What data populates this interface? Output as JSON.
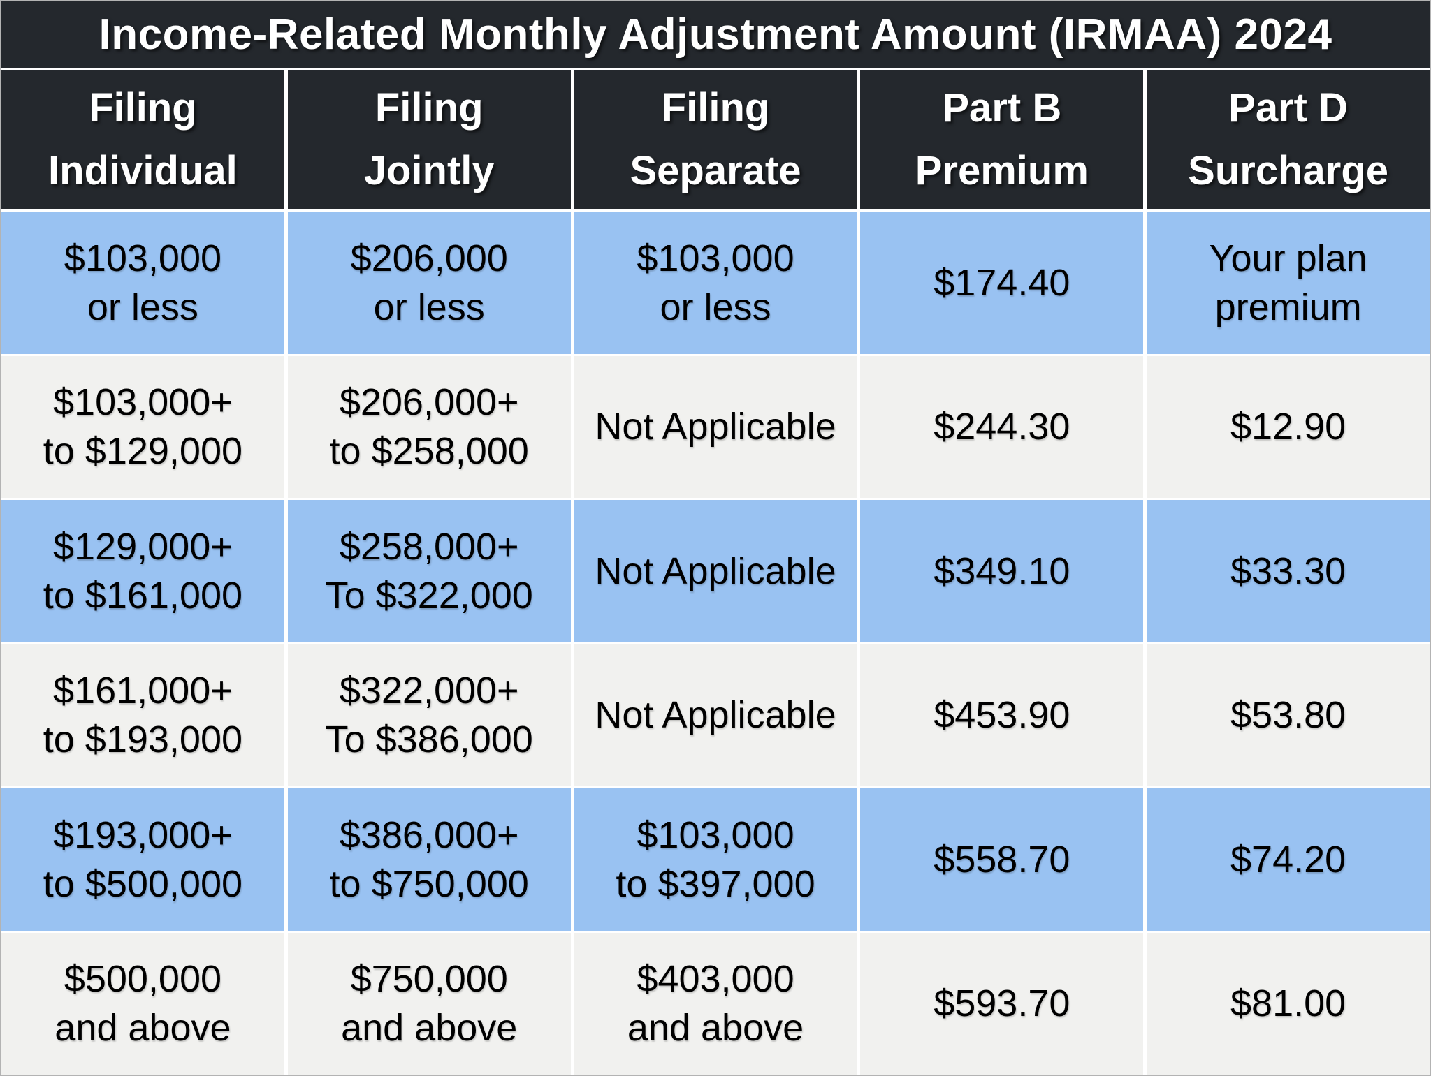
{
  "title": "Income-Related Monthly Adjustment Amount (IRMAA) 2024",
  "colors": {
    "header_bg": "#24282d",
    "header_text": "#ffffff",
    "row_blue": "#99c2f2",
    "row_gray": "#f1f1ef",
    "grid_line": "#ffffff",
    "cell_text": "#000000"
  },
  "table": {
    "header": [
      [
        "Filing",
        "Individual"
      ],
      [
        "Filing",
        "Jointly"
      ],
      [
        "Filing",
        "Separate"
      ],
      [
        "Part B",
        "Premium"
      ],
      [
        "Part D",
        "Surcharge"
      ]
    ],
    "rows": [
      {
        "shade": "blue",
        "cells": [
          [
            "$103,000",
            "or less"
          ],
          [
            "$206,000",
            "or less"
          ],
          [
            "$103,000",
            "or less"
          ],
          [
            "$174.40"
          ],
          [
            "Your plan",
            "premium"
          ]
        ]
      },
      {
        "shade": "gray",
        "cells": [
          [
            "$103,000+",
            "to $129,000"
          ],
          [
            "$206,000+",
            "to $258,000"
          ],
          [
            "Not Applicable"
          ],
          [
            "$244.30"
          ],
          [
            "$12.90"
          ]
        ]
      },
      {
        "shade": "blue",
        "cells": [
          [
            "$129,000+",
            "to $161,000"
          ],
          [
            "$258,000+",
            "To $322,000"
          ],
          [
            "Not Applicable"
          ],
          [
            "$349.10"
          ],
          [
            "$33.30"
          ]
        ]
      },
      {
        "shade": "gray",
        "cells": [
          [
            "$161,000+",
            "to $193,000"
          ],
          [
            "$322,000+",
            "To $386,000"
          ],
          [
            "Not Applicable"
          ],
          [
            "$453.90"
          ],
          [
            "$53.80"
          ]
        ]
      },
      {
        "shade": "blue",
        "cells": [
          [
            "$193,000+",
            "to $500,000"
          ],
          [
            "$386,000+",
            "to $750,000"
          ],
          [
            "$103,000",
            "to $397,000"
          ],
          [
            "$558.70"
          ],
          [
            "$74.20"
          ]
        ]
      },
      {
        "shade": "gray",
        "cells": [
          [
            "$500,000",
            "and above"
          ],
          [
            "$750,000",
            "and above"
          ],
          [
            "$403,000",
            "and above"
          ],
          [
            "$593.70"
          ],
          [
            "$81.00"
          ]
        ]
      }
    ]
  },
  "chart_data": {
    "type": "table",
    "title": "Income-Related Monthly Adjustment Amount (IRMAA) 2024",
    "columns": [
      "Filing Individual",
      "Filing Jointly",
      "Filing Separate",
      "Part B Premium",
      "Part D Surcharge"
    ],
    "rows": [
      [
        "$103,000 or less",
        "$206,000 or less",
        "$103,000 or less",
        "$174.40",
        "Your plan premium"
      ],
      [
        "$103,000+ to $129,000",
        "$206,000+ to $258,000",
        "Not Applicable",
        "$244.30",
        "$12.90"
      ],
      [
        "$129,000+ to $161,000",
        "$258,000+ To $322,000",
        "Not Applicable",
        "$349.10",
        "$33.30"
      ],
      [
        "$161,000+ to $193,000",
        "$322,000+ To $386,000",
        "Not Applicable",
        "$453.90",
        "$53.80"
      ],
      [
        "$193,000+ to $500,000",
        "$386,000+ to $750,000",
        "$103,000 to $397,000",
        "$558.70",
        "$74.20"
      ],
      [
        "$500,000 and above",
        "$750,000 and above",
        "$403,000 and above",
        "$593.70",
        "$81.00"
      ]
    ]
  }
}
